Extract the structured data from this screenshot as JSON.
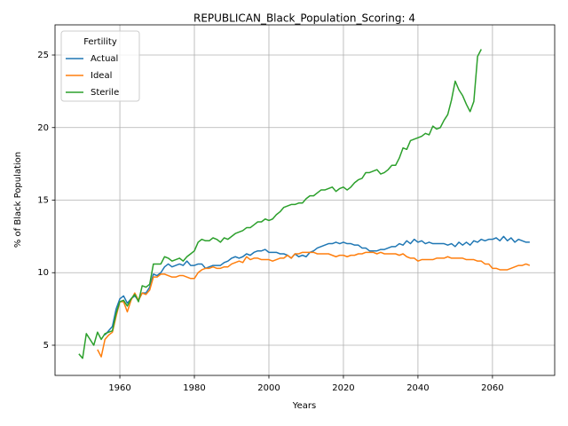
{
  "chart_data": {
    "type": "line",
    "title": "REPUBLICAN_Black_Population_Scoring: 4",
    "x_label": "Years",
    "y_label": "% of Black Population",
    "legend_title": "Fertility",
    "legend_position": "upper left",
    "grid": true,
    "xlim": [
      1942.6,
      2076.7
    ],
    "ylim": [
      2.92,
      27.08
    ],
    "xticks": [
      1960,
      1980,
      2000,
      2020,
      2040,
      2060
    ],
    "yticks": [
      5,
      10,
      15,
      20,
      25
    ],
    "x": [
      1949,
      1950,
      1951,
      1952,
      1953,
      1954,
      1955,
      1956,
      1957,
      1958,
      1959,
      1960,
      1961,
      1962,
      1963,
      1964,
      1965,
      1966,
      1967,
      1968,
      1969,
      1970,
      1971,
      1972,
      1973,
      1974,
      1975,
      1976,
      1977,
      1978,
      1979,
      1980,
      1981,
      1982,
      1983,
      1984,
      1985,
      1986,
      1987,
      1988,
      1989,
      1990,
      1991,
      1992,
      1993,
      1994,
      1995,
      1996,
      1997,
      1998,
      1999,
      2000,
      2001,
      2002,
      2003,
      2004,
      2005,
      2006,
      2007,
      2008,
      2009,
      2010,
      2011,
      2012,
      2013,
      2014,
      2015,
      2016,
      2017,
      2018,
      2019,
      2020,
      2021,
      2022,
      2023,
      2024,
      2025,
      2026,
      2027,
      2028,
      2029,
      2030,
      2031,
      2032,
      2033,
      2034,
      2035,
      2036,
      2037,
      2038,
      2039,
      2040,
      2041,
      2042,
      2043,
      2044,
      2045,
      2046,
      2047,
      2048,
      2049,
      2050,
      2051,
      2052,
      2053,
      2054,
      2055,
      2056,
      2057,
      2058,
      2059,
      2060,
      2061,
      2062,
      2063,
      2064,
      2065,
      2066,
      2067,
      2068,
      2069,
      2070
    ],
    "series": [
      {
        "name": "Actual",
        "color": "#1f77b4",
        "values": [
          null,
          null,
          null,
          null,
          null,
          null,
          null,
          5.7,
          6.0,
          6.3,
          7.5,
          8.2,
          8.4,
          7.9,
          8.2,
          8.4,
          8.1,
          8.6,
          8.6,
          9.0,
          9.9,
          9.8,
          10.0,
          10.4,
          10.6,
          10.4,
          10.5,
          10.6,
          10.5,
          10.8,
          10.5,
          10.5,
          10.6,
          10.6,
          10.3,
          10.4,
          10.5,
          10.5,
          10.5,
          10.7,
          10.8,
          11.0,
          11.1,
          11.0,
          11.1,
          11.3,
          11.2,
          11.4,
          11.5,
          11.5,
          11.6,
          11.4,
          11.4,
          11.4,
          11.3,
          11.3,
          11.2,
          11.0,
          11.3,
          11.1,
          11.2,
          11.1,
          11.4,
          11.5,
          11.7,
          11.8,
          11.9,
          12.0,
          12.0,
          12.1,
          12.0,
          12.1,
          12.0,
          12.0,
          11.9,
          11.9,
          11.7,
          11.7,
          11.5,
          11.5,
          11.5,
          11.6,
          11.6,
          11.7,
          11.8,
          11.8,
          12.0,
          11.9,
          12.2,
          12.0,
          12.3,
          12.1,
          12.2,
          12.0,
          12.1,
          12.0,
          12.0,
          12.0,
          12.0,
          11.9,
          12.0,
          11.8,
          12.1,
          11.9,
          12.1,
          11.9,
          12.2,
          12.1,
          12.3,
          12.2,
          12.3,
          12.3,
          12.4,
          12.2,
          12.5,
          12.2,
          12.4,
          12.1,
          12.3,
          12.2,
          12.1,
          12.1
        ]
      },
      {
        "name": "Ideal",
        "color": "#ff7f0e",
        "values": [
          null,
          null,
          null,
          null,
          null,
          4.7,
          4.2,
          5.4,
          5.7,
          5.9,
          7.0,
          8.0,
          8.0,
          7.3,
          8.1,
          8.6,
          8.1,
          8.6,
          8.5,
          8.8,
          9.7,
          9.7,
          9.9,
          9.9,
          9.8,
          9.7,
          9.7,
          9.8,
          9.8,
          9.7,
          9.6,
          9.6,
          10.0,
          10.2,
          10.3,
          10.3,
          10.4,
          10.3,
          10.3,
          10.4,
          10.4,
          10.6,
          10.7,
          10.8,
          10.7,
          11.1,
          10.9,
          11.0,
          11.0,
          10.9,
          10.9,
          10.9,
          10.8,
          10.9,
          11.0,
          11.0,
          11.2,
          11.0,
          11.3,
          11.3,
          11.4,
          11.4,
          11.4,
          11.4,
          11.3,
          11.3,
          11.3,
          11.3,
          11.2,
          11.1,
          11.2,
          11.2,
          11.1,
          11.2,
          11.2,
          11.3,
          11.3,
          11.4,
          11.4,
          11.4,
          11.3,
          11.4,
          11.3,
          11.3,
          11.3,
          11.3,
          11.2,
          11.3,
          11.1,
          11.0,
          11.0,
          10.8,
          10.9,
          10.9,
          10.9,
          10.9,
          11.0,
          11.0,
          11.0,
          11.1,
          11.0,
          11.0,
          11.0,
          11.0,
          10.9,
          10.9,
          10.9,
          10.8,
          10.8,
          10.6,
          10.6,
          10.3,
          10.3,
          10.2,
          10.2,
          10.2,
          10.3,
          10.4,
          10.5,
          10.5,
          10.6,
          10.5
        ]
      },
      {
        "name": "Sterile",
        "color": "#2ca02c",
        "values": [
          4.4,
          4.1,
          5.8,
          5.4,
          5.0,
          5.9,
          5.4,
          5.8,
          5.9,
          6.0,
          7.2,
          8.0,
          8.1,
          7.7,
          8.2,
          8.5,
          8.0,
          9.1,
          9.0,
          9.2,
          10.6,
          10.6,
          10.6,
          11.1,
          11.0,
          10.8,
          10.9,
          11.0,
          10.8,
          11.1,
          11.3,
          11.5,
          12.1,
          12.3,
          12.2,
          12.2,
          12.4,
          12.3,
          12.1,
          12.4,
          12.3,
          12.5,
          12.7,
          12.8,
          12.9,
          13.1,
          13.1,
          13.3,
          13.5,
          13.5,
          13.7,
          13.6,
          13.7,
          14.0,
          14.2,
          14.5,
          14.6,
          14.7,
          14.7,
          14.8,
          14.8,
          15.1,
          15.3,
          15.3,
          15.5,
          15.7,
          15.7,
          15.8,
          15.9,
          15.6,
          15.8,
          15.9,
          15.7,
          15.9,
          16.2,
          16.4,
          16.5,
          16.9,
          16.9,
          17.0,
          17.1,
          16.8,
          16.9,
          17.1,
          17.4,
          17.4,
          17.9,
          18.6,
          18.5,
          19.1,
          19.2,
          19.3,
          19.4,
          19.6,
          19.5,
          20.1,
          19.9,
          20.0,
          20.5,
          20.9,
          21.9,
          23.2,
          22.6,
          22.2,
          21.6,
          21.1,
          21.8,
          24.9,
          25.4,
          null,
          null,
          null,
          null,
          null,
          null,
          null,
          null,
          null,
          null,
          null,
          null,
          null
        ]
      }
    ]
  }
}
